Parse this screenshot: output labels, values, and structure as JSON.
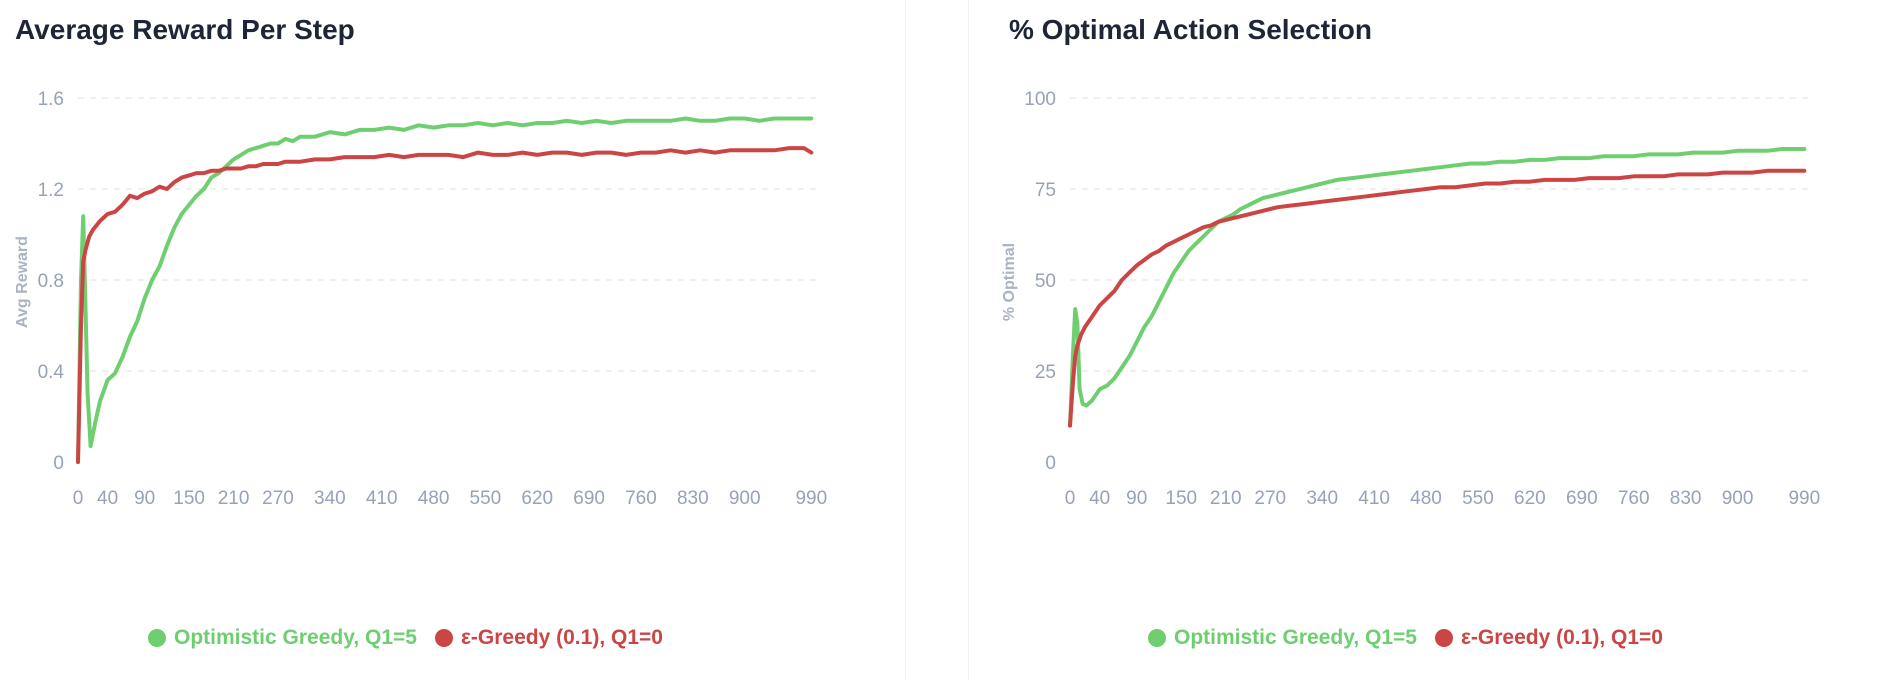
{
  "colors": {
    "optimistic": "#6fcf70",
    "greedy": "#cc4545",
    "grid": "#e8ebf0",
    "tick": "#97a2b8"
  },
  "chart_data": [
    {
      "type": "line",
      "title": "Average Reward Per Step",
      "ylabel": "Avg Reward",
      "xlabel": "",
      "xlim": [
        0,
        999
      ],
      "ylim": [
        0,
        1.6
      ],
      "x_ticks": [
        0,
        40,
        90,
        150,
        210,
        270,
        340,
        410,
        480,
        550,
        620,
        690,
        760,
        830,
        900,
        990
      ],
      "y_ticks": [
        "0",
        "0.4",
        "0.8",
        "1.2",
        "1.6"
      ],
      "y_tick_values": [
        0,
        0.4,
        0.8,
        1.2,
        1.6
      ],
      "grid": "horizontal dashed",
      "legend_position": "bottom-center",
      "series": [
        {
          "name": "Optimistic Greedy, Q1=5",
          "color": "#6fcf70",
          "x": [
            0,
            4,
            7,
            10,
            13,
            17,
            20,
            25,
            30,
            40,
            50,
            60,
            70,
            80,
            90,
            100,
            110,
            120,
            130,
            140,
            150,
            160,
            170,
            180,
            190,
            200,
            210,
            220,
            230,
            240,
            250,
            260,
            270,
            280,
            290,
            300,
            320,
            340,
            360,
            380,
            400,
            420,
            440,
            460,
            480,
            500,
            520,
            540,
            560,
            580,
            600,
            620,
            640,
            660,
            680,
            700,
            720,
            740,
            760,
            780,
            800,
            820,
            840,
            860,
            880,
            900,
            920,
            940,
            960,
            980,
            990
          ],
          "y": [
            0.0,
            0.8,
            1.08,
            0.7,
            0.3,
            0.07,
            0.12,
            0.2,
            0.27,
            0.36,
            0.39,
            0.46,
            0.55,
            0.62,
            0.72,
            0.8,
            0.86,
            0.95,
            1.03,
            1.09,
            1.13,
            1.17,
            1.2,
            1.25,
            1.27,
            1.3,
            1.33,
            1.35,
            1.37,
            1.38,
            1.39,
            1.4,
            1.4,
            1.42,
            1.41,
            1.43,
            1.43,
            1.45,
            1.44,
            1.46,
            1.46,
            1.47,
            1.46,
            1.48,
            1.47,
            1.48,
            1.48,
            1.49,
            1.48,
            1.49,
            1.48,
            1.49,
            1.49,
            1.5,
            1.49,
            1.5,
            1.49,
            1.5,
            1.5,
            1.5,
            1.5,
            1.51,
            1.5,
            1.5,
            1.51,
            1.51,
            1.5,
            1.51,
            1.51,
            1.51,
            1.51
          ]
        },
        {
          "name": "ε-Greedy (0.1), Q1=0",
          "color": "#cc4545",
          "x": [
            0,
            4,
            7,
            10,
            15,
            20,
            25,
            30,
            40,
            50,
            60,
            70,
            80,
            90,
            100,
            110,
            120,
            130,
            140,
            150,
            160,
            170,
            180,
            190,
            200,
            210,
            220,
            230,
            240,
            250,
            260,
            270,
            280,
            300,
            320,
            340,
            360,
            380,
            400,
            420,
            440,
            460,
            480,
            500,
            520,
            540,
            560,
            580,
            600,
            620,
            640,
            660,
            680,
            700,
            720,
            740,
            760,
            780,
            800,
            820,
            840,
            860,
            880,
            900,
            920,
            940,
            960,
            980,
            990
          ],
          "y": [
            0.0,
            0.6,
            0.88,
            0.93,
            0.99,
            1.02,
            1.04,
            1.06,
            1.09,
            1.1,
            1.13,
            1.17,
            1.16,
            1.18,
            1.19,
            1.21,
            1.2,
            1.23,
            1.25,
            1.26,
            1.27,
            1.27,
            1.28,
            1.28,
            1.29,
            1.29,
            1.29,
            1.3,
            1.3,
            1.31,
            1.31,
            1.31,
            1.32,
            1.32,
            1.33,
            1.33,
            1.34,
            1.34,
            1.34,
            1.35,
            1.34,
            1.35,
            1.35,
            1.35,
            1.34,
            1.36,
            1.35,
            1.35,
            1.36,
            1.35,
            1.36,
            1.36,
            1.35,
            1.36,
            1.36,
            1.35,
            1.36,
            1.36,
            1.37,
            1.36,
            1.37,
            1.36,
            1.37,
            1.37,
            1.37,
            1.37,
            1.38,
            1.38,
            1.36
          ]
        }
      ]
    },
    {
      "type": "line",
      "title": "% Optimal Action Selection",
      "ylabel": "% Optimal",
      "xlabel": "",
      "xlim": [
        0,
        999
      ],
      "ylim": [
        0,
        100
      ],
      "x_ticks": [
        0,
        40,
        90,
        150,
        210,
        270,
        340,
        410,
        480,
        550,
        620,
        690,
        760,
        830,
        900,
        990
      ],
      "y_ticks": [
        "0",
        "25",
        "50",
        "75",
        "100"
      ],
      "y_tick_values": [
        0,
        25,
        50,
        75,
        100
      ],
      "grid": "horizontal dashed",
      "legend_position": "bottom-center",
      "series": [
        {
          "name": "Optimistic Greedy, Q1=5",
          "color": "#6fcf70",
          "x": [
            0,
            4,
            7,
            10,
            13,
            17,
            22,
            30,
            40,
            50,
            60,
            70,
            80,
            90,
            100,
            110,
            120,
            130,
            140,
            150,
            160,
            170,
            180,
            190,
            200,
            210,
            220,
            230,
            240,
            250,
            260,
            270,
            280,
            300,
            320,
            340,
            360,
            380,
            400,
            420,
            440,
            460,
            480,
            500,
            520,
            540,
            560,
            580,
            600,
            620,
            640,
            660,
            680,
            700,
            720,
            740,
            760,
            780,
            800,
            820,
            840,
            860,
            880,
            900,
            920,
            940,
            960,
            980,
            990
          ],
          "y": [
            10,
            30,
            42,
            38,
            20,
            16,
            15.5,
            17,
            20,
            21,
            23,
            26,
            29,
            33,
            37,
            40,
            44,
            48,
            52,
            55,
            58,
            60,
            62,
            64,
            66,
            67,
            68,
            69.5,
            70.5,
            71.5,
            72.5,
            73,
            73.5,
            74.5,
            75.5,
            76.5,
            77.5,
            78,
            78.5,
            79,
            79.5,
            80,
            80.5,
            81,
            81.5,
            82,
            82,
            82.5,
            82.5,
            83,
            83,
            83.5,
            83.5,
            83.5,
            84,
            84,
            84,
            84.5,
            84.5,
            84.5,
            85,
            85,
            85,
            85.5,
            85.5,
            85.5,
            86,
            86,
            86
          ]
        },
        {
          "name": "ε-Greedy (0.1), Q1=0",
          "color": "#cc4545",
          "x": [
            0,
            4,
            7,
            10,
            15,
            20,
            30,
            40,
            50,
            60,
            70,
            80,
            90,
            100,
            110,
            120,
            130,
            140,
            150,
            160,
            170,
            180,
            190,
            200,
            210,
            220,
            230,
            240,
            250,
            260,
            270,
            280,
            300,
            320,
            340,
            360,
            380,
            400,
            420,
            440,
            460,
            480,
            500,
            520,
            540,
            560,
            580,
            600,
            620,
            640,
            660,
            680,
            700,
            720,
            740,
            760,
            780,
            800,
            820,
            840,
            860,
            880,
            900,
            920,
            940,
            960,
            980,
            990
          ],
          "y": [
            10,
            22,
            29,
            32,
            35,
            37,
            40,
            43,
            45,
            47,
            50,
            52,
            54,
            55.5,
            57,
            58,
            59.5,
            60.5,
            61.5,
            62.5,
            63.5,
            64.5,
            65,
            66,
            66.5,
            67,
            67.5,
            68,
            68.5,
            69,
            69.5,
            70,
            70.5,
            71,
            71.5,
            72,
            72.5,
            73,
            73.5,
            74,
            74.5,
            75,
            75.5,
            75.5,
            76,
            76.5,
            76.5,
            77,
            77,
            77.5,
            77.5,
            77.5,
            78,
            78,
            78,
            78.5,
            78.5,
            78.5,
            79,
            79,
            79,
            79.5,
            79.5,
            79.5,
            80,
            80,
            80,
            80
          ]
        }
      ]
    }
  ]
}
